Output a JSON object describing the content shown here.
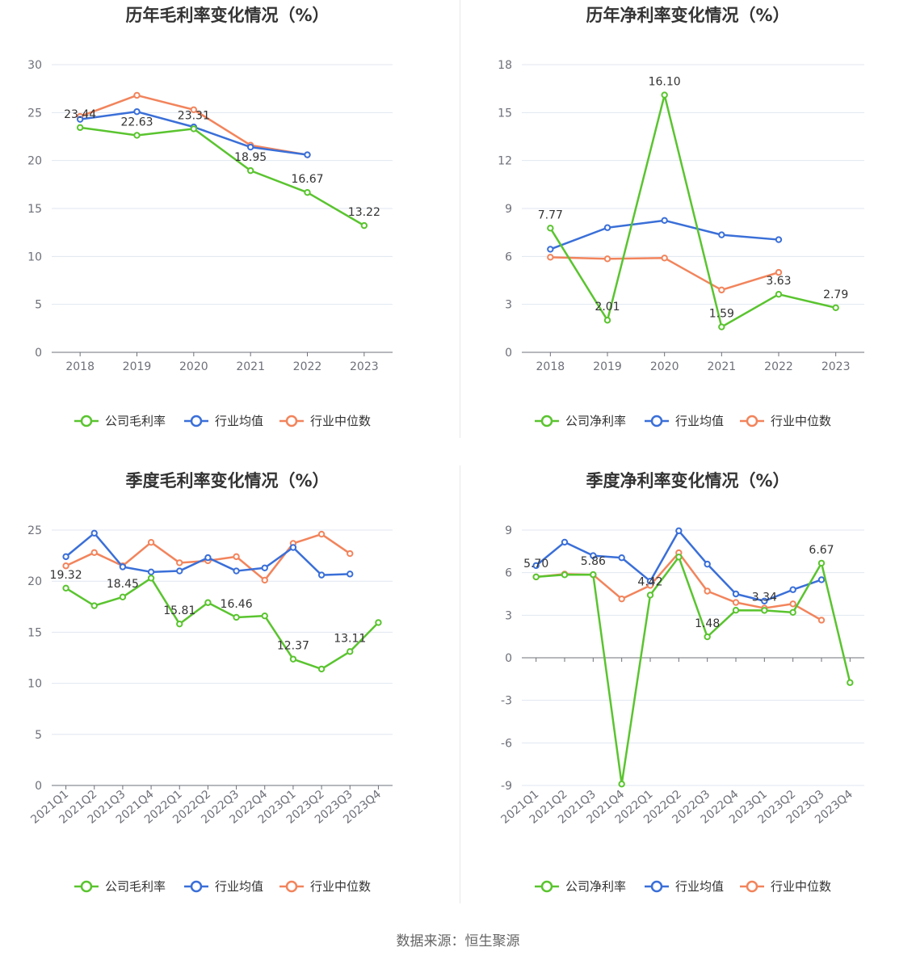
{
  "source": "数据来源：恒生聚源",
  "colors": {
    "company": "#5ac42f",
    "average": "#3a6fd8",
    "median": "#f2845c",
    "axis": "#6e7079",
    "grid": "#e0e6f1"
  },
  "chart_data": [
    {
      "type": "line",
      "title": "历年毛利率变化情况（%）",
      "categories": [
        "2018",
        "2019",
        "2020",
        "2021",
        "2022",
        "2023"
      ],
      "ylim": [
        0,
        30
      ],
      "yticks": [
        0,
        5,
        10,
        15,
        20,
        25,
        30
      ],
      "rotate_x": false,
      "series": [
        {
          "name": "公司毛利率",
          "key": "company",
          "values": [
            23.44,
            22.63,
            23.31,
            18.95,
            16.67,
            13.22
          ],
          "labels": [
            "23.44",
            "22.63",
            "23.31",
            "18.95",
            "16.67",
            "13.22"
          ]
        },
        {
          "name": "行业均值",
          "key": "average",
          "values": [
            24.3,
            25.1,
            23.5,
            21.4,
            20.6,
            null
          ]
        },
        {
          "name": "行业中位数",
          "key": "median",
          "values": [
            24.6,
            26.8,
            25.3,
            21.6,
            20.6,
            null
          ]
        }
      ]
    },
    {
      "type": "line",
      "title": "历年净利率变化情况（%）",
      "categories": [
        "2018",
        "2019",
        "2020",
        "2021",
        "2022",
        "2023"
      ],
      "ylim": [
        0,
        18
      ],
      "yticks": [
        0,
        3,
        6,
        9,
        12,
        15,
        18
      ],
      "rotate_x": false,
      "series": [
        {
          "name": "公司净利率",
          "key": "company",
          "values": [
            7.77,
            2.01,
            16.1,
            1.59,
            3.63,
            2.79
          ],
          "labels": [
            "7.77",
            "2.01",
            "16.10",
            "1.59",
            "3.63",
            "2.79"
          ]
        },
        {
          "name": "行业均值",
          "key": "average",
          "values": [
            6.45,
            7.8,
            8.25,
            7.35,
            7.05,
            null
          ]
        },
        {
          "name": "行业中位数",
          "key": "median",
          "values": [
            5.95,
            5.85,
            5.9,
            3.9,
            5.0,
            null
          ]
        }
      ]
    },
    {
      "type": "line",
      "title": "季度毛利率变化情况（%）",
      "categories": [
        "2021Q1",
        "2021Q2",
        "2021Q3",
        "2021Q4",
        "2022Q1",
        "2022Q2",
        "2022Q3",
        "2022Q4",
        "2023Q1",
        "2023Q2",
        "2023Q3",
        "2023Q4"
      ],
      "ylim": [
        0,
        25
      ],
      "yticks": [
        0,
        5,
        10,
        15,
        20,
        25
      ],
      "rotate_x": true,
      "series": [
        {
          "name": "公司毛利率",
          "key": "company",
          "values": [
            19.32,
            17.6,
            18.45,
            20.3,
            15.81,
            17.9,
            16.46,
            16.6,
            12.37,
            11.4,
            13.11,
            15.95
          ],
          "labels": [
            "19.32",
            null,
            "18.45",
            null,
            "15.81",
            null,
            "16.46",
            null,
            "12.37",
            null,
            "13.11",
            null
          ]
        },
        {
          "name": "行业均值",
          "key": "average",
          "values": [
            22.4,
            24.7,
            21.4,
            20.9,
            21.0,
            22.3,
            21.0,
            21.3,
            23.3,
            20.6,
            20.7,
            null
          ]
        },
        {
          "name": "行业中位数",
          "key": "median",
          "values": [
            21.5,
            22.8,
            21.5,
            23.8,
            21.8,
            22.0,
            22.4,
            20.1,
            23.7,
            24.6,
            22.7,
            null
          ]
        }
      ]
    },
    {
      "type": "line",
      "title": "季度净利率变化情况（%）",
      "categories": [
        "2021Q1",
        "2021Q2",
        "2021Q3",
        "2021Q4",
        "2022Q1",
        "2022Q2",
        "2022Q3",
        "2022Q4",
        "2023Q1",
        "2023Q2",
        "2023Q3",
        "2023Q4"
      ],
      "ylim": [
        -9,
        9
      ],
      "yticks": [
        -9,
        -6,
        -3,
        0,
        3,
        6,
        9
      ],
      "rotate_x": true,
      "series": [
        {
          "name": "公司净利率",
          "key": "company",
          "values": [
            5.7,
            5.85,
            5.86,
            -8.9,
            4.42,
            7.1,
            1.48,
            3.35,
            3.34,
            3.2,
            6.67,
            -1.75
          ],
          "labels": [
            "5.70",
            null,
            "5.86",
            null,
            "4.42",
            null,
            "1.48",
            null,
            "3.34",
            null,
            "6.67",
            null
          ]
        },
        {
          "name": "行业均值",
          "key": "average",
          "values": [
            6.5,
            8.15,
            7.2,
            7.05,
            5.4,
            8.95,
            6.6,
            4.5,
            4.0,
            4.8,
            5.5,
            null
          ]
        },
        {
          "name": "行业中位数",
          "key": "median",
          "values": [
            5.7,
            5.9,
            5.85,
            4.15,
            5.1,
            7.4,
            4.7,
            3.9,
            3.5,
            3.8,
            2.65,
            null
          ]
        }
      ]
    }
  ]
}
